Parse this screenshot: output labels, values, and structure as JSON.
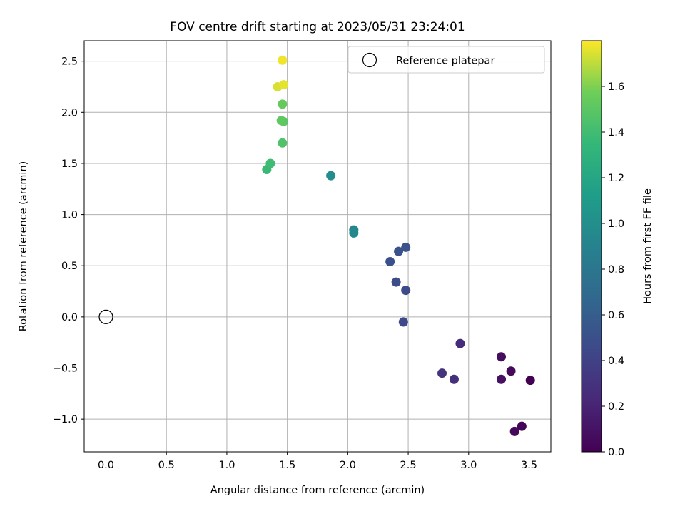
{
  "chart_data": {
    "type": "scatter",
    "title": "FOV centre drift starting at 2023/05/31 23:24:01",
    "xlabel": "Angular distance from reference (arcmin)",
    "ylabel": "Rotation from reference (arcmin)",
    "xlim": [
      -0.18,
      3.68
    ],
    "ylim": [
      -1.32,
      2.7
    ],
    "xticks": [
      0.0,
      0.5,
      1.0,
      1.5,
      2.0,
      2.5,
      3.0,
      3.5
    ],
    "xtick_labels": [
      "0.0",
      "0.5",
      "1.0",
      "1.5",
      "2.0",
      "2.5",
      "3.0",
      "3.5"
    ],
    "yticks": [
      -1.0,
      -0.5,
      0.0,
      0.5,
      1.0,
      1.5,
      2.0,
      2.5
    ],
    "ytick_labels": [
      "−1.0",
      "−0.5",
      "0.0",
      "0.5",
      "1.0",
      "1.5",
      "2.0",
      "2.5"
    ],
    "grid": true,
    "legend": {
      "position": "top-right",
      "entries": [
        {
          "label": "Reference platepar",
          "marker": "open-circle"
        }
      ]
    },
    "reference_point": {
      "x": 0.0,
      "y": 0.0
    },
    "colorbar": {
      "label": "Hours from first FF file",
      "colormap": "viridis",
      "range": [
        0.0,
        1.8
      ],
      "ticks": [
        0.0,
        0.2,
        0.4,
        0.6,
        0.8,
        1.0,
        1.2,
        1.4,
        1.6
      ],
      "tick_labels": [
        "0.0",
        "0.2",
        "0.4",
        "0.6",
        "0.8",
        "1.0",
        "1.2",
        "1.4",
        "1.6"
      ]
    },
    "points": [
      {
        "x": 3.51,
        "y": -0.62,
        "hours": 0.0
      },
      {
        "x": 3.44,
        "y": -1.07,
        "hours": 0.02
      },
      {
        "x": 3.38,
        "y": -1.12,
        "hours": 0.04
      },
      {
        "x": 3.35,
        "y": -0.53,
        "hours": 0.05
      },
      {
        "x": 3.27,
        "y": -0.39,
        "hours": 0.07
      },
      {
        "x": 3.27,
        "y": -0.61,
        "hours": 0.09
      },
      {
        "x": 2.93,
        "y": -0.26,
        "hours": 0.26
      },
      {
        "x": 2.88,
        "y": -0.61,
        "hours": 0.28
      },
      {
        "x": 2.78,
        "y": -0.55,
        "hours": 0.3
      },
      {
        "x": 2.46,
        "y": -0.05,
        "hours": 0.45
      },
      {
        "x": 2.48,
        "y": 0.26,
        "hours": 0.47
      },
      {
        "x": 2.4,
        "y": 0.34,
        "hours": 0.48
      },
      {
        "x": 2.35,
        "y": 0.54,
        "hours": 0.5
      },
      {
        "x": 2.42,
        "y": 0.64,
        "hours": 0.51
      },
      {
        "x": 2.48,
        "y": 0.68,
        "hours": 0.52
      },
      {
        "x": 2.05,
        "y": 0.85,
        "hours": 0.93
      },
      {
        "x": 2.05,
        "y": 0.82,
        "hours": 0.95
      },
      {
        "x": 1.86,
        "y": 1.38,
        "hours": 1.0
      },
      {
        "x": 1.33,
        "y": 1.44,
        "hours": 1.37
      },
      {
        "x": 1.36,
        "y": 1.5,
        "hours": 1.39
      },
      {
        "x": 1.46,
        "y": 1.7,
        "hours": 1.46
      },
      {
        "x": 1.47,
        "y": 1.91,
        "hours": 1.5
      },
      {
        "x": 1.45,
        "y": 1.92,
        "hours": 1.52
      },
      {
        "x": 1.46,
        "y": 2.08,
        "hours": 1.54
      },
      {
        "x": 1.42,
        "y": 2.25,
        "hours": 1.74
      },
      {
        "x": 1.47,
        "y": 2.27,
        "hours": 1.76
      },
      {
        "x": 1.46,
        "y": 2.51,
        "hours": 1.78
      }
    ]
  }
}
